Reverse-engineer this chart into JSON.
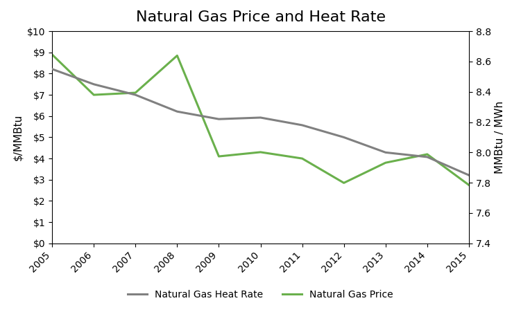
{
  "title": "Natural Gas Price and Heat Rate",
  "years": [
    2005,
    2006,
    2007,
    2008,
    2009,
    2010,
    2011,
    2012,
    2013,
    2014,
    2015
  ],
  "ng_price": [
    8.9,
    7.0,
    7.1,
    8.85,
    4.1,
    4.3,
    4.0,
    2.85,
    3.8,
    4.2,
    2.75
  ],
  "heat_rate": [
    8.55,
    8.45,
    8.38,
    8.27,
    8.22,
    8.23,
    8.18,
    8.1,
    8.0,
    7.97,
    7.85
  ],
  "price_color": "#6ab04c",
  "heat_rate_color": "#808080",
  "ylabel_left": "$/MMBtu",
  "ylabel_right": "MMBtu / MWh",
  "ylim_left": [
    0,
    10
  ],
  "ylim_right": [
    7.4,
    8.8
  ],
  "legend_price": "Natural Gas Price",
  "legend_hr": "Natural Gas Heat Rate",
  "line_width": 2.2,
  "bg_color": "#ffffff",
  "title_fontsize": 16,
  "tick_fontsize": 10,
  "label_fontsize": 11
}
